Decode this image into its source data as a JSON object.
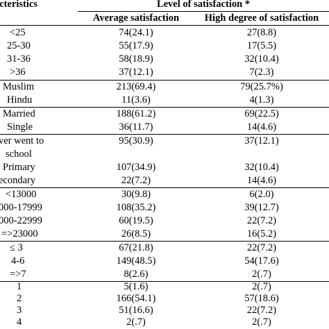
{
  "header": {
    "characteristics": "acteristics",
    "level": "Level of  satisfaction *",
    "avg": "Average satisfaction",
    "high": "High degree of satisfaction"
  },
  "rows": [
    {
      "label": "<25",
      "avg": "74(24.1)",
      "high": "27(8.8)"
    },
    {
      "label": "25-30",
      "avg": "55(17.9)",
      "high": "17(5.5)"
    },
    {
      "label": "31-36",
      "avg": "58(18.9)",
      "high": "32(10.4)"
    },
    {
      "label": ">36",
      "avg": "37(12.1)",
      "high": "7(2.3)"
    },
    {
      "label": "Muslim",
      "avg": "213(69.4)",
      "high": "79(25.7%)"
    },
    {
      "label": "Hindu",
      "avg": "11(3.6)",
      "high": "4(1.3)"
    },
    {
      "label": "Married",
      "avg": "188(61.2)",
      "high": "69(22.5)"
    },
    {
      "label": "Single",
      "avg": "36(11.7)",
      "high": "14(4.6)"
    },
    {
      "label": "ver went to",
      "avg": "95(30.9)",
      "high": "37(12.1)"
    },
    {
      "label": "school",
      "avg": "",
      "high": ""
    },
    {
      "label": "Primary",
      "avg": "107(34.9)",
      "high": "32(10.4)"
    },
    {
      "label": "econdary",
      "avg": "22(7.2)",
      "high": "14(4.6)"
    },
    {
      "label": "<13000",
      "avg": "30(9.8)",
      "high": "6(2.0)"
    },
    {
      "label": "000-17999",
      "avg": "108(35.2)",
      "high": "39(12.7)"
    },
    {
      "label": "000-22999",
      "avg": "60(19.5)",
      "high": "22(7.2)"
    },
    {
      "label": "=>23000",
      "avg": "26(8.5)",
      "high": "16(5.2)"
    },
    {
      "label": "≤ 3",
      "avg": "67(21.8)",
      "high": "22(7.2)"
    },
    {
      "label": "4-6",
      "avg": "149(48.5)",
      "high": "54(17.6)"
    },
    {
      "label": "=>7",
      "avg": "8(2.6)",
      "high": "2(.7)"
    },
    {
      "label": "1",
      "avg": "5(1.6)",
      "high": "2(.7)"
    },
    {
      "label": "2",
      "avg": "166(54.1)",
      "high": "57(18.6)"
    },
    {
      "label": "3",
      "avg": "51(16.6)",
      "high": "22(7.2)"
    },
    {
      "label": "4",
      "avg": "2(.7)",
      "high": "2(.7)"
    }
  ]
}
